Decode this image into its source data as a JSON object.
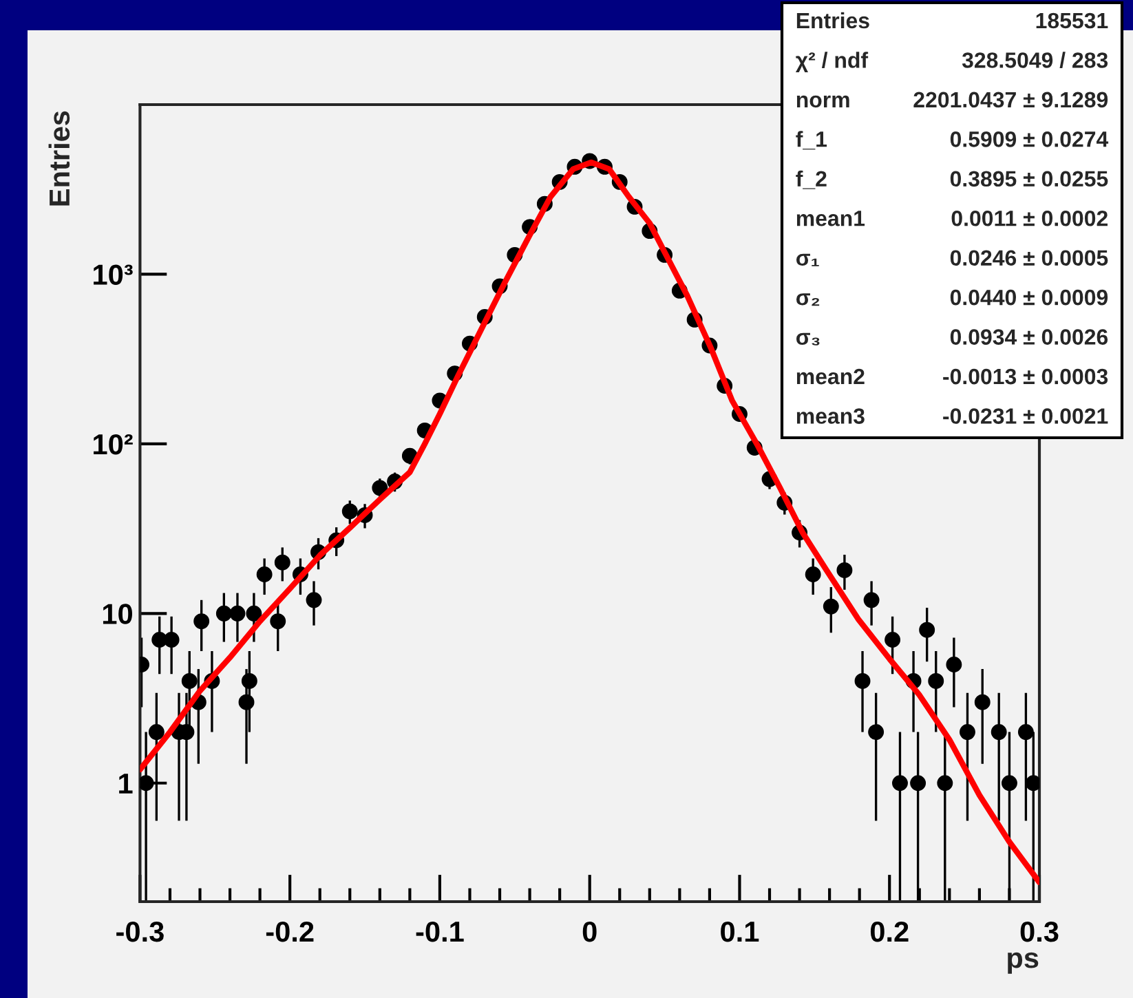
{
  "chart_data": {
    "type": "scatter",
    "xlabel": "ps",
    "ylabel": "Entries",
    "xlim": [
      -0.3,
      0.3
    ],
    "xticks": [
      -0.3,
      -0.2,
      -0.1,
      0,
      0.1,
      0.2,
      0.3
    ],
    "ylim": [
      0.2,
      10000
    ],
    "yticks": [
      {
        "value": 1,
        "label": "1"
      },
      {
        "value": 10,
        "label": "10"
      },
      {
        "value": 100,
        "label": "10²"
      },
      {
        "value": 1000,
        "label": "10³"
      }
    ],
    "log": "y",
    "annotations": [
      "Entries",
      "185531",
      "χ² / ndf",
      "328.5049 / 283",
      "norm",
      "2201.0437 ± 9.1289",
      "f_1",
      "0.5909 ± 0.0274",
      "f_2",
      "0.3895 ± 0.0255",
      "mean1",
      "0.0011 ± 0.0002",
      "σ₁",
      "0.0246 ± 0.0005",
      "σ₂",
      "0.0440 ± 0.0009",
      "σ₃",
      "0.0934 ± 0.0026",
      "mean2",
      "-0.0013 ± 0.0003",
      "mean3",
      "-0.0231 ± 0.0021"
    ],
    "series": [
      {
        "color": "#000000",
        "marker": "circle",
        "x": [
          -0.299,
          -0.296,
          -0.289,
          -0.287,
          -0.279,
          -0.274,
          -0.269,
          -0.267,
          -0.261,
          -0.259,
          -0.252,
          -0.244,
          -0.235,
          -0.229,
          -0.227,
          -0.224,
          -0.217,
          -0.208,
          -0.205,
          -0.193,
          -0.184,
          -0.181,
          -0.169,
          -0.16,
          -0.15,
          -0.14,
          -0.13,
          -0.12,
          -0.11,
          -0.1,
          -0.09,
          -0.08,
          -0.07,
          -0.06,
          -0.05,
          -0.04,
          -0.03,
          -0.02,
          -0.01,
          0,
          0.01,
          0.02,
          0.03,
          0.04,
          0.05,
          0.06,
          0.07,
          0.08,
          0.09,
          0.1,
          0.11,
          0.12,
          0.13,
          0.14,
          0.149,
          0.161,
          0.17,
          0.182,
          0.188,
          0.191,
          0.202,
          0.207,
          0.216,
          0.219,
          0.225,
          0.231,
          0.237,
          0.243,
          0.252,
          0.262,
          0.273,
          0.28,
          0.291,
          0.296
        ],
        "values": [
          5,
          1,
          2,
          7,
          7,
          2,
          2,
          4,
          3,
          9,
          4,
          10,
          10,
          3,
          4,
          10,
          17,
          9,
          20,
          17,
          12,
          23,
          27,
          40,
          38,
          55,
          60,
          85,
          120,
          180,
          260,
          390,
          560,
          850,
          1300,
          1900,
          2600,
          3500,
          4300,
          4650,
          4300,
          3500,
          2500,
          1800,
          1300,
          800,
          540,
          380,
          220,
          150,
          95,
          62,
          45,
          30,
          17,
          11,
          18,
          4,
          12,
          2,
          7,
          1,
          4,
          1,
          8,
          4,
          1,
          5,
          2,
          3,
          2,
          1,
          2,
          1
        ],
        "errors": [
          2.2,
          [
            0.2,
            2
          ],
          1.4,
          2.6,
          2.6,
          1.4,
          1.4,
          2,
          1.7,
          3,
          2,
          3.2,
          3.2,
          1.7,
          2,
          3.2,
          4.1,
          3,
          4.5,
          4.1,
          3.5,
          4.8,
          5.2,
          6.3,
          6.2,
          7.4,
          7.7,
          9.2,
          11,
          13,
          16,
          20,
          24,
          29,
          36,
          44,
          51,
          59,
          66,
          68,
          66,
          59,
          50,
          42,
          36,
          28,
          23,
          19,
          15,
          12,
          9.7,
          7.9,
          6.7,
          5.5,
          4.1,
          3.3,
          4.2,
          2,
          3.5,
          1.4,
          2.6,
          [
            0.2,
            2
          ],
          2,
          [
            0.2,
            2
          ],
          2.8,
          2,
          [
            0.2,
            2
          ],
          2.2,
          1.4,
          1.7,
          1.4,
          [
            0.2,
            2
          ],
          1.4,
          [
            0.2,
            2
          ]
        ]
      },
      {
        "type": "line",
        "color": "#ff0000",
        "x": [
          -0.3,
          -0.28,
          -0.26,
          -0.24,
          -0.22,
          -0.2,
          -0.18,
          -0.16,
          -0.14,
          -0.12,
          -0.11,
          -0.1,
          -0.088,
          -0.07,
          -0.057,
          -0.04,
          -0.026,
          -0.011,
          0.001,
          0.013,
          0.026,
          0.04,
          0.05,
          0.065,
          0.081,
          0.095,
          0.112,
          0.127,
          0.142,
          0.158,
          0.179,
          0.2,
          0.22,
          0.24,
          0.26,
          0.28,
          0.3
        ],
        "values": [
          1.2,
          2.0,
          3.5,
          5.5,
          9,
          14,
          22,
          32,
          47,
          68,
          100,
          150,
          250,
          520,
          880,
          1700,
          2870,
          4170,
          4570,
          4170,
          2870,
          2000,
          1350,
          750,
          365,
          180,
          98,
          55,
          30,
          18,
          9.3,
          5.4,
          3.3,
          1.8,
          0.85,
          0.45,
          0.26
        ]
      }
    ]
  }
}
